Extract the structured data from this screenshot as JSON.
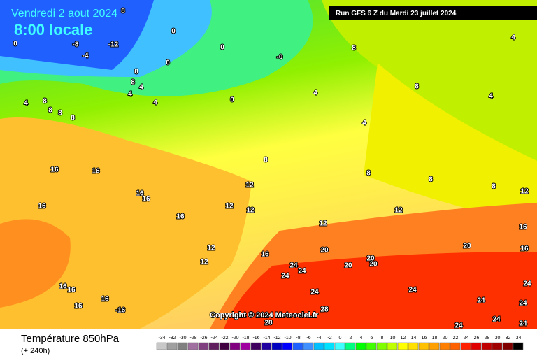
{
  "header": {
    "date": "Vendredi 2 aout 2024",
    "time": "8:00 locale",
    "run": "Run GFS 6 Z du Mardi 23 juillet 2024"
  },
  "copyright": "Copyright © 2024 Meteociel.fr",
  "legend": {
    "title": "Température 850hPa",
    "subtitle": "(+ 240h)",
    "scale": [
      -34,
      -32,
      -30,
      -28,
      -26,
      -24,
      -22,
      -20,
      -18,
      -16,
      -14,
      -12,
      -10,
      -8,
      -6,
      -4,
      -2,
      0,
      2,
      4,
      6,
      8,
      10,
      12,
      14,
      16,
      18,
      20,
      22,
      24,
      26,
      28,
      30,
      32,
      34
    ],
    "colors": [
      "#c8c8c8",
      "#a0a0a0",
      "#808080",
      "#a070a0",
      "#804080",
      "#602060",
      "#400040",
      "#800080",
      "#a000a0",
      "#400060",
      "#2000a0",
      "#0000c0",
      "#0000ff",
      "#2060ff",
      "#4090ff",
      "#00c0ff",
      "#00e0ff",
      "#40ffff",
      "#00ff80",
      "#00ff00",
      "#40ff00",
      "#80ff00",
      "#c0ff00",
      "#ffff00",
      "#ffe000",
      "#ffc000",
      "#ffa000",
      "#ff8000",
      "#ff6000",
      "#ff2000",
      "#e00000",
      "#c00000",
      "#a00000",
      "#800000",
      "#000000"
    ]
  },
  "contour_labels": [
    "8",
    "0",
    "-8",
    "-4",
    "-12",
    "0",
    "0",
    "0",
    "-0",
    "8",
    "8",
    "4",
    "4",
    "8",
    "4",
    "8",
    "4",
    "4",
    "4",
    "0",
    "4",
    "8",
    "8",
    "8",
    "8",
    "4",
    "8",
    "8",
    "8",
    "8",
    "16",
    "16",
    "16",
    "16",
    "16",
    "16",
    "12",
    "12",
    "12",
    "12",
    "12",
    "12",
    "16",
    "16",
    "20",
    "20",
    "20",
    "20",
    "20",
    "12",
    "12",
    "16",
    "16",
    "16",
    "16",
    "-16",
    "16",
    "24",
    "24",
    "24",
    "24",
    "24",
    "24",
    "24",
    "24",
    "28",
    "28",
    "24",
    "24",
    "24"
  ]
}
